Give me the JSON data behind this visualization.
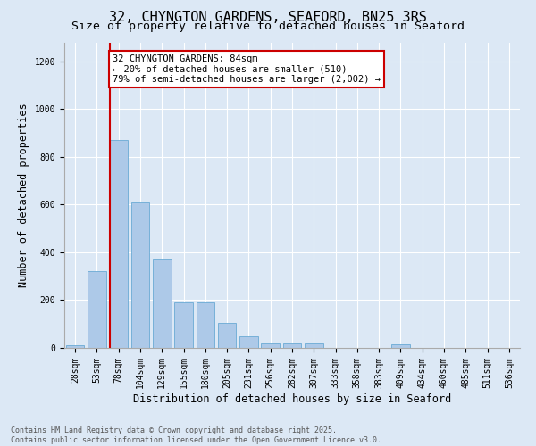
{
  "title_line1": "32, CHYNGTON GARDENS, SEAFORD, BN25 3RS",
  "title_line2": "Size of property relative to detached houses in Seaford",
  "xlabel": "Distribution of detached houses by size in Seaford",
  "ylabel": "Number of detached properties",
  "categories": [
    "28sqm",
    "53sqm",
    "78sqm",
    "104sqm",
    "129sqm",
    "155sqm",
    "180sqm",
    "205sqm",
    "231sqm",
    "256sqm",
    "282sqm",
    "307sqm",
    "333sqm",
    "358sqm",
    "383sqm",
    "409sqm",
    "434sqm",
    "460sqm",
    "485sqm",
    "511sqm",
    "536sqm"
  ],
  "values": [
    13,
    320,
    870,
    608,
    375,
    190,
    190,
    105,
    50,
    20,
    18,
    18,
    0,
    0,
    0,
    15,
    0,
    0,
    0,
    0,
    0
  ],
  "bar_color": "#adc9e8",
  "bar_edge_color": "#6aaad4",
  "vline_color": "#cc0000",
  "annotation_text": "32 CHYNGTON GARDENS: 84sqm\n← 20% of detached houses are smaller (510)\n79% of semi-detached houses are larger (2,002) →",
  "annotation_box_color": "#ffffff",
  "annotation_box_edge": "#cc0000",
  "ylim": [
    0,
    1280
  ],
  "yticks": [
    0,
    200,
    400,
    600,
    800,
    1000,
    1200
  ],
  "bg_color": "#dce8f5",
  "plot_bg": "#dce8f5",
  "footer": "Contains HM Land Registry data © Crown copyright and database right 2025.\nContains public sector information licensed under the Open Government Licence v3.0.",
  "title_fontsize": 11,
  "subtitle_fontsize": 9.5,
  "axis_label_fontsize": 8.5,
  "tick_fontsize": 7,
  "annotation_fontsize": 7.5,
  "footer_fontsize": 6
}
